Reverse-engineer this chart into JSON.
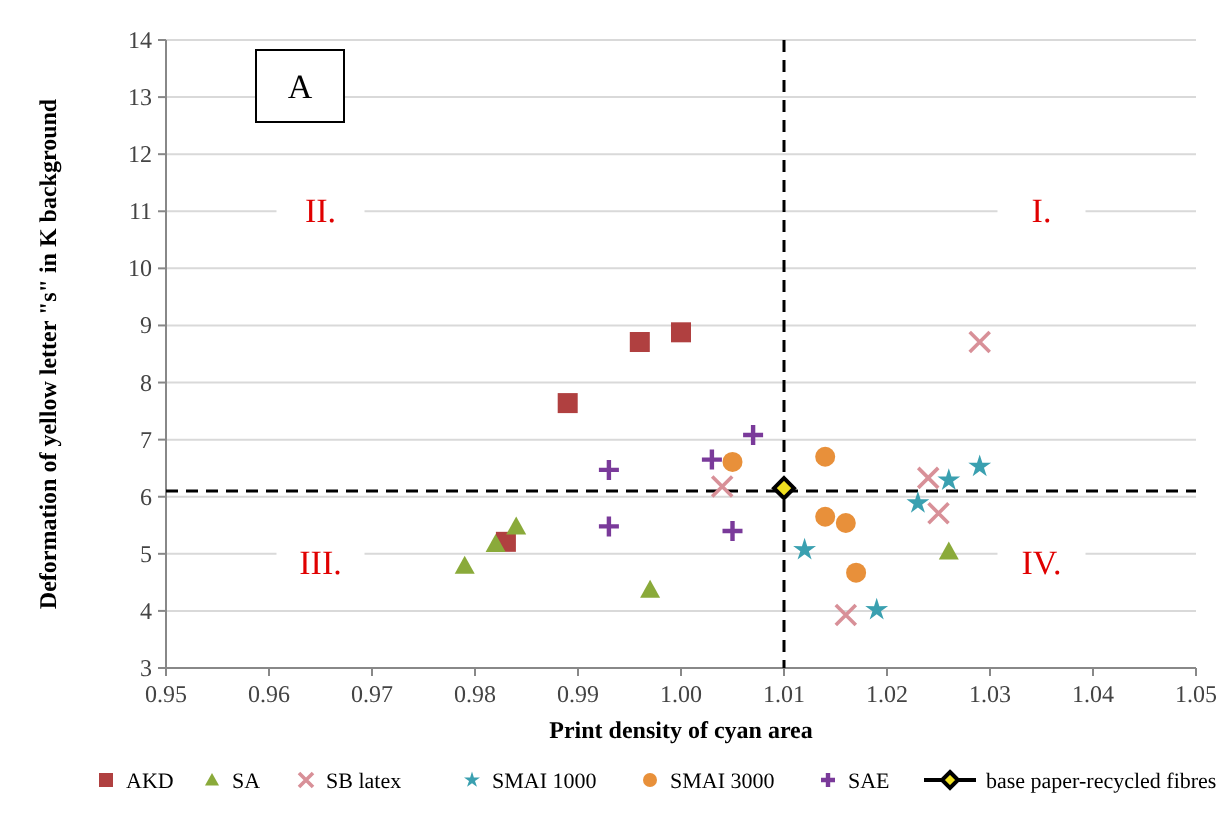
{
  "chart_data": {
    "type": "scatter",
    "xlabel": "Print density of cyan area",
    "ylabel": "Deformation of yellow letter \"s\" in K background",
    "xlim": [
      0.95,
      1.05
    ],
    "xticks": [
      {
        "value": 0.95,
        "label": "0.95"
      },
      {
        "value": 0.96,
        "label": "0.96"
      },
      {
        "value": 0.97,
        "label": "0.97"
      },
      {
        "value": 0.98,
        "label": "0.98"
      },
      {
        "value": 0.99,
        "label": "0.99"
      },
      {
        "value": 1.0,
        "label": "1.00"
      },
      {
        "value": 1.01,
        "label": "1.01"
      },
      {
        "value": 1.02,
        "label": "1.02"
      },
      {
        "value": 1.03,
        "label": "1.03"
      },
      {
        "value": 1.04,
        "label": "1.04"
      },
      {
        "value": 1.05,
        "label": "1.05"
      }
    ],
    "ylim": [
      3,
      14
    ],
    "yticks": [
      3,
      4,
      5,
      6,
      7,
      8,
      9,
      10,
      11,
      12,
      13,
      14
    ],
    "grid": "y",
    "legend": "bottom",
    "ref_lines": [
      {
        "axis": "y",
        "value": 6.1,
        "line_style": "dashed",
        "color": "#000000"
      },
      {
        "axis": "x",
        "value": 1.01,
        "line_style": "dashed",
        "color": "#000000"
      }
    ],
    "annotations": [
      "A",
      "I.",
      "II.",
      "III.",
      "IV."
    ],
    "series": [
      {
        "name": "AKD",
        "color": "#b04040",
        "marker": "square",
        "x": [
          0.989,
          0.996,
          1.0,
          0.983
        ],
        "values": [
          7.64,
          8.71,
          8.88,
          5.21
        ]
      },
      {
        "name": "SA",
        "color": "#8aaa3a",
        "marker": "triangle",
        "x": [
          0.979,
          0.982,
          0.984,
          0.997,
          1.026
        ],
        "values": [
          4.79,
          5.17,
          5.48,
          4.37,
          5.04
        ]
      },
      {
        "name": "SB latex",
        "color": "#d89098",
        "marker": "cross",
        "x": [
          1.004,
          1.024,
          1.025,
          1.029,
          1.016
        ],
        "values": [
          6.18,
          6.33,
          5.71,
          8.71,
          3.93
        ]
      },
      {
        "name": "SMAI 1000",
        "color": "#3aa0b0",
        "marker": "star",
        "x": [
          1.012,
          1.019,
          1.023,
          1.026,
          1.029
        ],
        "values": [
          5.07,
          4.02,
          5.89,
          6.29,
          6.53
        ]
      },
      {
        "name": "SMAI 3000",
        "color": "#e8903a",
        "marker": "circle",
        "x": [
          1.005,
          1.014,
          1.014,
          1.016,
          1.017
        ],
        "values": [
          6.61,
          6.7,
          5.65,
          5.54,
          4.67
        ]
      },
      {
        "name": "SAE",
        "color": "#7a3a9a",
        "marker": "plus",
        "x": [
          0.993,
          0.993,
          1.003,
          1.007,
          1.005
        ],
        "values": [
          6.47,
          5.48,
          6.65,
          7.08,
          5.4
        ]
      },
      {
        "name": "base paper-recycled fibres",
        "color": "#000000",
        "marker": "diamond",
        "x": [
          1.01
        ],
        "values": [
          6.15
        ]
      }
    ]
  }
}
